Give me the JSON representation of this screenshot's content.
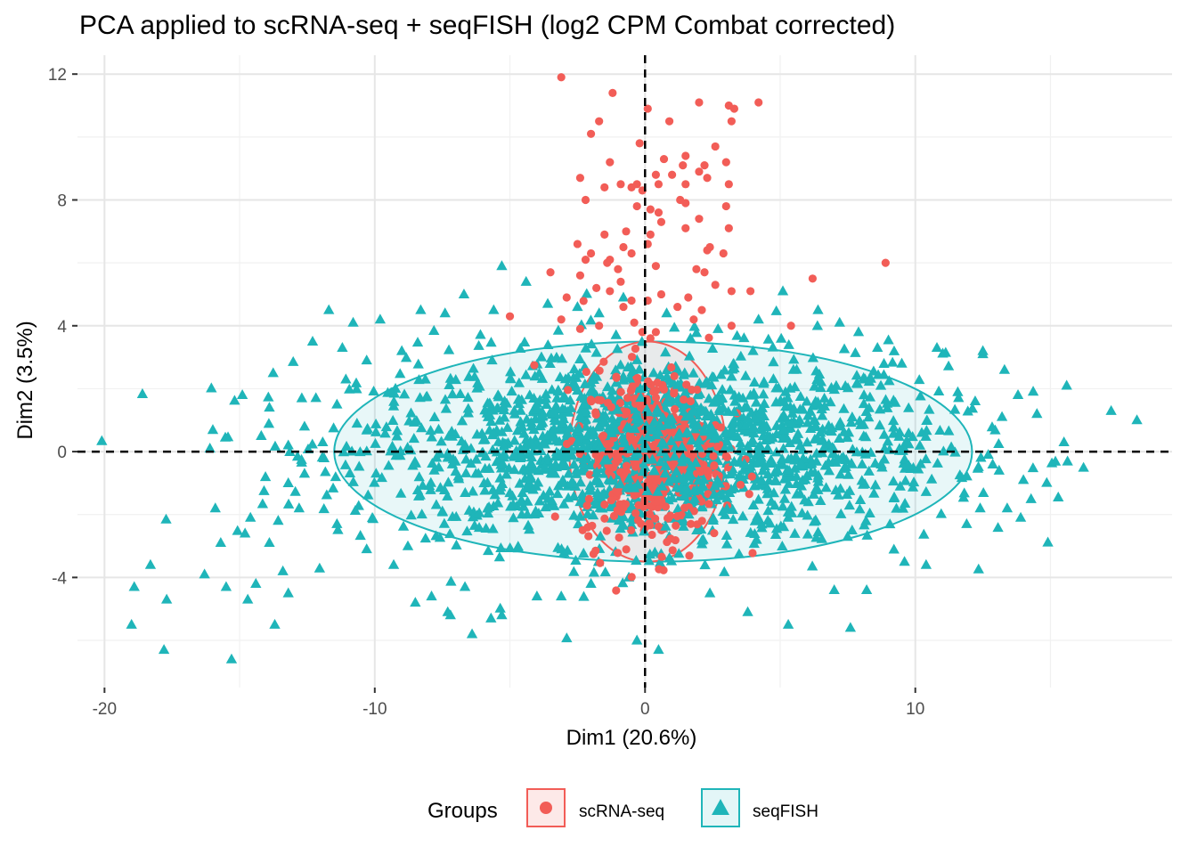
{
  "chart_data": {
    "type": "scatter",
    "title": "PCA applied to scRNA-seq + seqFISH (log2 CPM Combat corrected)",
    "xlabel": "Dim1 (20.6%)",
    "ylabel": "Dim2 (3.5%)",
    "xlim": [
      -21,
      19.5
    ],
    "ylim": [
      -7.5,
      12.6
    ],
    "x_ticks": [
      -20,
      -10,
      0,
      10
    ],
    "x_tick_labels": [
      "-20",
      "-10",
      "0",
      "10"
    ],
    "y_ticks": [
      -4,
      0,
      4,
      8,
      12
    ],
    "y_tick_labels": [
      "-4",
      "0",
      "4",
      "8",
      "12"
    ],
    "grid": true,
    "reference_lines": {
      "x": 0,
      "y": 0,
      "style": "dashed"
    },
    "legend": {
      "title": "Groups",
      "position": "bottom",
      "entries": [
        "scRNA-seq",
        "seqFISH"
      ]
    },
    "series": [
      {
        "name": "scRNA-seq",
        "marker": "circle",
        "color": "#f25d57",
        "ellipse": {
          "cx": 0.1,
          "cy": 0,
          "rx": 2.9,
          "ry": 3.5
        },
        "cluster": {
          "cx": 0.3,
          "cy": -0.2,
          "sx": 1.3,
          "sy": 1.4,
          "n": 420
        },
        "points": [
          [
            -3.1,
            11.9
          ],
          [
            -1.2,
            11.4
          ],
          [
            0.1,
            10.9
          ],
          [
            2.0,
            11.1
          ],
          [
            3.1,
            11.0
          ],
          [
            3.3,
            10.9
          ],
          [
            4.2,
            11.1
          ],
          [
            -1.7,
            10.5
          ],
          [
            0.9,
            10.5
          ],
          [
            3.2,
            10.5
          ],
          [
            -2.0,
            10.1
          ],
          [
            -0.2,
            9.8
          ],
          [
            1.5,
            9.4
          ],
          [
            2.6,
            9.7
          ],
          [
            -1.3,
            9.2
          ],
          [
            0.7,
            9.3
          ],
          [
            1.4,
            9.1
          ],
          [
            2.2,
            9.1
          ],
          [
            3.0,
            9.2
          ],
          [
            -2.4,
            8.7
          ],
          [
            0.4,
            8.8
          ],
          [
            1.0,
            8.8
          ],
          [
            2.0,
            8.9
          ],
          [
            3.1,
            8.5
          ],
          [
            -1.5,
            8.4
          ],
          [
            -0.9,
            8.5
          ],
          [
            -0.5,
            8.4
          ],
          [
            -0.3,
            8.5
          ],
          [
            -0.1,
            8.3
          ],
          [
            0.5,
            8.5
          ],
          [
            1.5,
            8.5
          ],
          [
            2.3,
            8.7
          ],
          [
            -2.2,
            8.0
          ],
          [
            1.3,
            8.0
          ],
          [
            1.5,
            7.9
          ],
          [
            -0.3,
            7.8
          ],
          [
            0.2,
            7.7
          ],
          [
            0.5,
            7.6
          ],
          [
            0.6,
            7.3
          ],
          [
            1.5,
            7.1
          ],
          [
            2.0,
            7.4
          ],
          [
            3.0,
            7.8
          ],
          [
            -1.5,
            6.9
          ],
          [
            -2.5,
            6.6
          ],
          [
            -0.8,
            6.5
          ],
          [
            -0.7,
            7.0
          ],
          [
            0.2,
            6.9
          ],
          [
            3.1,
            7.1
          ],
          [
            -1.3,
            6.1
          ],
          [
            -1.4,
            6.0
          ],
          [
            -2.2,
            6.1
          ],
          [
            -2.0,
            6.3
          ],
          [
            -0.5,
            6.3
          ],
          [
            0.1,
            6.6
          ],
          [
            2.4,
            6.5
          ],
          [
            2.9,
            6.3
          ],
          [
            2.2,
            5.7
          ],
          [
            1.9,
            5.8
          ],
          [
            -1.0,
            5.8
          ],
          [
            -2.4,
            5.6
          ],
          [
            0.4,
            5.9
          ],
          [
            2.3,
            6.4
          ],
          [
            -1.8,
            5.2
          ],
          [
            -1.3,
            5.1
          ],
          [
            0.6,
            5.0
          ],
          [
            1.6,
            4.9
          ],
          [
            2.6,
            5.3
          ],
          [
            -0.9,
            5.4
          ],
          [
            3.2,
            5.1
          ],
          [
            3.9,
            5.1
          ],
          [
            6.2,
            5.5
          ],
          [
            8.9,
            6.0
          ],
          [
            -3.5,
            5.7
          ],
          [
            -2.9,
            4.9
          ],
          [
            -0.8,
            4.6
          ],
          [
            -0.5,
            4.8
          ],
          [
            0.1,
            4.8
          ],
          [
            1.2,
            4.6
          ],
          [
            2.1,
            4.5
          ],
          [
            3.2,
            4.0
          ],
          [
            -3.1,
            4.2
          ],
          [
            -1.7,
            4.0
          ],
          [
            -0.4,
            4.1
          ],
          [
            1.8,
            4.2
          ],
          [
            5.4,
            4.0
          ],
          [
            -5.0,
            4.3
          ],
          [
            -2.4,
            3.9
          ],
          [
            0.4,
            3.8
          ],
          [
            0.2,
            3.6
          ],
          [
            -0.1,
            3.8
          ]
        ]
      },
      {
        "name": "seqFISH",
        "marker": "triangle",
        "color": "#1fb5b9",
        "ellipse": {
          "cx": 0.3,
          "cy": 0,
          "rx": 11.8,
          "ry": 3.5
        },
        "cluster": {
          "cx": 0.2,
          "cy": 0.1,
          "sx": 5.4,
          "sy": 1.5,
          "n": 1750
        },
        "points": [
          [
            -19.0,
            -5.5
          ],
          [
            -17.8,
            -6.3
          ],
          [
            -15.3,
            -6.6
          ],
          [
            -18.9,
            -4.3
          ],
          [
            -18.3,
            -3.6
          ],
          [
            -17.7,
            -4.7
          ],
          [
            -16.3,
            -3.9
          ],
          [
            -15.5,
            -4.3
          ],
          [
            -14.7,
            -4.7
          ],
          [
            -14.4,
            -4.2
          ],
          [
            -13.7,
            -5.5
          ],
          [
            -13.2,
            -4.5
          ],
          [
            -13.4,
            -3.8
          ],
          [
            -15.7,
            -2.9
          ],
          [
            -14.6,
            -2.1
          ],
          [
            -14.8,
            -2.6
          ],
          [
            -13.9,
            -2.9
          ],
          [
            -15.9,
            -1.8
          ],
          [
            -16.1,
            0.1
          ],
          [
            -14.9,
            1.8
          ],
          [
            -14.2,
            0.5
          ],
          [
            -13.9,
            1.4
          ],
          [
            -13.2,
            -1.0
          ],
          [
            -12.8,
            -1.8
          ],
          [
            -12.6,
            0.8
          ],
          [
            -11.7,
            4.5
          ],
          [
            -12.3,
            3.5
          ],
          [
            -11.2,
            3.3
          ],
          [
            -11.4,
            1.5
          ],
          [
            -10.3,
            2.9
          ],
          [
            -10.8,
            4.1
          ],
          [
            -12.7,
            1.7
          ],
          [
            -13.2,
            0.2
          ],
          [
            -12.6,
            -0.7
          ],
          [
            -11.4,
            -2.3
          ],
          [
            -10.3,
            -3.1
          ],
          [
            -9.3,
            -3.6
          ],
          [
            -8.5,
            -4.8
          ],
          [
            -7.9,
            -4.6
          ],
          [
            -7.3,
            -5.1
          ],
          [
            -6.4,
            -5.8
          ],
          [
            -7.2,
            -5.2
          ],
          [
            -5.7,
            -5.3
          ],
          [
            -5.3,
            -5.2
          ],
          [
            -4.0,
            -4.6
          ],
          [
            -3.1,
            -4.6
          ],
          [
            -2.0,
            -4.2
          ],
          [
            -0.6,
            -4.0
          ],
          [
            -0.3,
            -6.0
          ],
          [
            0.5,
            -6.3
          ],
          [
            2.4,
            -4.5
          ],
          [
            3.8,
            -5.1
          ],
          [
            5.3,
            -5.5
          ],
          [
            7.6,
            -5.6
          ],
          [
            7.0,
            -4.4
          ],
          [
            8.2,
            -4.4
          ],
          [
            9.6,
            -3.5
          ],
          [
            10.4,
            -3.6
          ],
          [
            11.9,
            -2.3
          ],
          [
            12.4,
            -1.8
          ],
          [
            13.4,
            -1.8
          ],
          [
            13.9,
            -2.1
          ],
          [
            14.0,
            -0.9
          ],
          [
            13.1,
            -0.6
          ],
          [
            12.7,
            -0.1
          ],
          [
            13.8,
            1.8
          ],
          [
            14.5,
            1.2
          ],
          [
            15.5,
            0.3
          ],
          [
            15.6,
            2.1
          ],
          [
            18.2,
            1.0
          ],
          [
            13.3,
            2.6
          ],
          [
            12.5,
            3.1
          ],
          [
            12.5,
            3.2
          ],
          [
            10.8,
            3.3
          ],
          [
            9.5,
            2.8
          ],
          [
            8.6,
            3.3
          ],
          [
            7.9,
            3.8
          ],
          [
            7.2,
            4.1
          ],
          [
            6.4,
            4.5
          ],
          [
            5.1,
            5.1
          ],
          [
            4.2,
            4.2
          ],
          [
            2.7,
            3.9
          ],
          [
            0.8,
            4.4
          ],
          [
            -0.8,
            4.9
          ],
          [
            -1.7,
            4.4
          ],
          [
            -2.5,
            4.6
          ],
          [
            -3.6,
            4.7
          ],
          [
            -4.4,
            5.4
          ],
          [
            -5.6,
            4.5
          ],
          [
            -5.3,
            5.9
          ],
          [
            -6.7,
            5.0
          ],
          [
            -7.4,
            4.4
          ],
          [
            -8.3,
            4.5
          ],
          [
            -9.8,
            4.2
          ],
          [
            -9.0,
            3.2
          ]
        ]
      }
    ]
  }
}
